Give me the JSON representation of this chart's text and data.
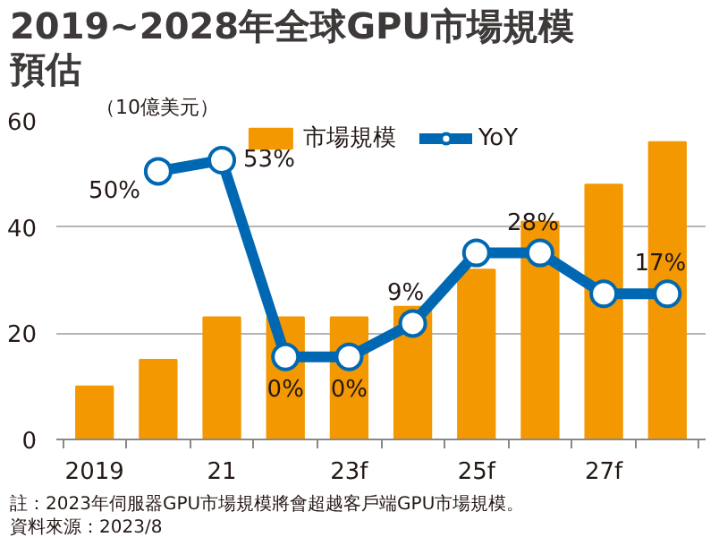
{
  "chart_data": {
    "type": "bar",
    "title": "2019~2028年全球GPU市場規模預估",
    "ylabel": "（10億美元）",
    "categories": [
      "2019",
      null,
      "21",
      null,
      "23f",
      null,
      "25f",
      null,
      "27f",
      null
    ],
    "series": [
      {
        "name": "市場規模",
        "color": "#f39800",
        "values": [
          10,
          15,
          23,
          23,
          23,
          25,
          32,
          41,
          48,
          56
        ]
      },
      {
        "name": "YoY",
        "type": "line",
        "axis": "y2",
        "color": "#0068b3",
        "marker": "circle",
        "values": [
          null,
          50,
          53,
          0,
          0,
          9,
          28,
          28,
          17,
          17
        ],
        "value_labels": [
          null,
          "50%",
          "53%",
          "0%",
          "0%",
          "9%",
          null,
          "28%",
          null,
          "17%"
        ]
      }
    ],
    "ylim": [
      0,
      60
    ],
    "yticks": [
      0,
      20,
      40,
      60
    ],
    "grid": "y",
    "legend": "top",
    "annotations": [
      "註：2023年伺服器GPU市場規模將會超越客戶端GPU市場規模。",
      "資料來源：2023/8"
    ]
  }
}
